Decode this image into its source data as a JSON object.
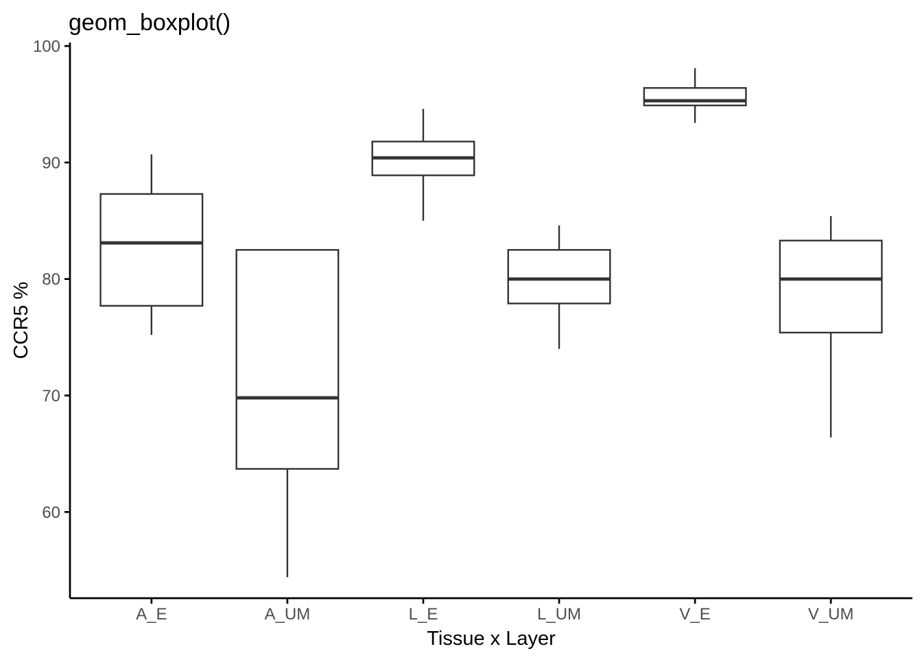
{
  "chart_data": {
    "type": "boxplot",
    "title": "geom_boxplot()",
    "xlabel": "Tissue x Layer",
    "ylabel": "CCR5 %",
    "categories": [
      "A_E",
      "A_UM",
      "L_E",
      "L_UM",
      "V_E",
      "V_UM"
    ],
    "series": [
      {
        "category": "A_E",
        "whisker_low": 75.2,
        "q1": 77.7,
        "median": 83.1,
        "q3": 87.3,
        "whisker_high": 90.7
      },
      {
        "category": "A_UM",
        "whisker_low": 54.4,
        "q1": 63.7,
        "median": 69.8,
        "q3": 82.5,
        "whisker_high": 82.5
      },
      {
        "category": "L_E",
        "whisker_low": 85.0,
        "q1": 88.9,
        "median": 90.4,
        "q3": 91.8,
        "whisker_high": 94.6
      },
      {
        "category": "L_UM",
        "whisker_low": 74.0,
        "q1": 77.9,
        "median": 80.0,
        "q3": 82.5,
        "whisker_high": 84.6
      },
      {
        "category": "V_E",
        "whisker_low": 93.4,
        "q1": 94.9,
        "median": 95.3,
        "q3": 96.4,
        "whisker_high": 98.1
      },
      {
        "category": "V_UM",
        "whisker_low": 66.4,
        "q1": 75.4,
        "median": 80.0,
        "q3": 83.3,
        "whisker_high": 85.4
      }
    ],
    "outliers": [],
    "y_ticks": [
      60,
      70,
      80,
      90,
      100
    ],
    "ylim": [
      52.6,
      100.3
    ],
    "grid": false,
    "legend": "none",
    "colors": {
      "box_stroke": "#333333",
      "box_fill": "#ffffff",
      "median_stroke": "#333333",
      "axis_line": "#000000",
      "tick_label": "#4d4d4d",
      "title": "#000000",
      "axis_title": "#000000",
      "background": "#ffffff"
    }
  }
}
